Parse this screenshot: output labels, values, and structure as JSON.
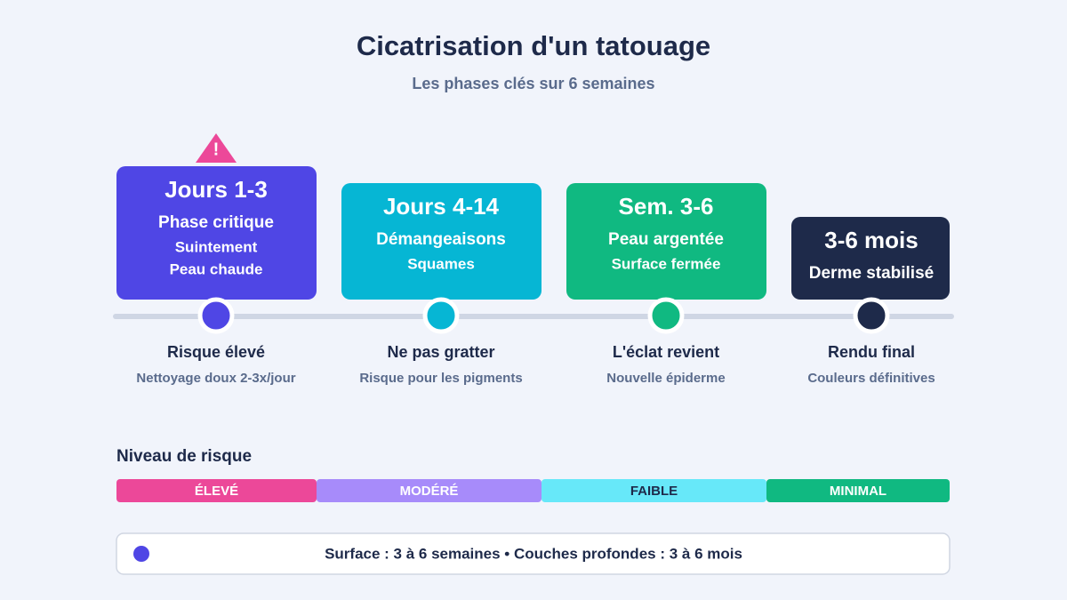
{
  "header": {
    "title": "Cicatrisation d'un tatouage",
    "subtitle": "Les phases clés sur 6 semaines"
  },
  "phases": [
    {
      "title": "Jours 1-3",
      "lines": [
        "Phase critique",
        "Suintement",
        "Peau chaude"
      ],
      "label": "Risque élevé",
      "note": "Nettoyage doux 2-3x/jour",
      "warning": "!"
    },
    {
      "title": "Jours 4-14",
      "lines": [
        "Démangeaisons",
        "Squames"
      ],
      "label": "Ne pas gratter",
      "note": "Risque pour les pigments"
    },
    {
      "title": "Sem. 3-6",
      "lines": [
        "Peau argentée",
        "Surface fermée"
      ],
      "label": "L'éclat revient",
      "note": "Nouvelle épiderme"
    },
    {
      "title": "3-6 mois",
      "lines": [
        "Derme stabilisé"
      ],
      "label": "Rendu final",
      "note": "Couleurs définitives"
    }
  ],
  "risk": {
    "title": "Niveau de risque",
    "levels": [
      "ÉLEVÉ",
      "MODÉRÉ",
      "FAIBLE",
      "MINIMAL"
    ]
  },
  "footer": {
    "text": "Surface : 3 à 6 semaines • Couches profondes : 3 à 6 mois"
  }
}
